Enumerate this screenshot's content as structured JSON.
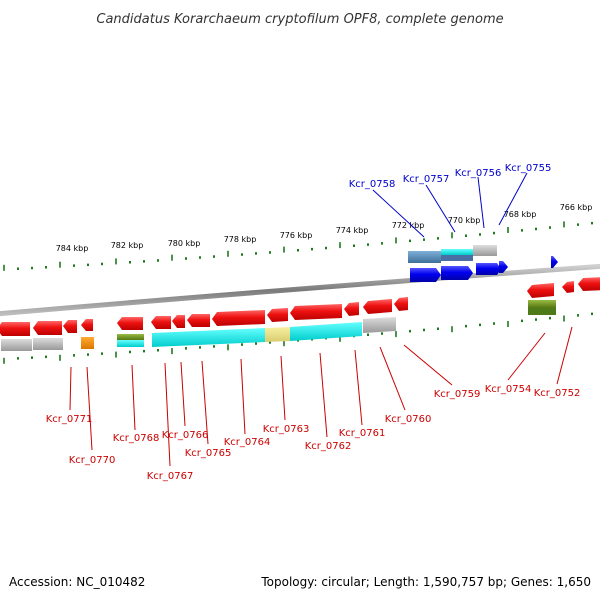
{
  "title": "Candidatus Korarchaeum cryptofilum OPF8, complete genome",
  "footer": {
    "accession": "Accession: NC_010482",
    "summary": "Topology: circular; Length: 1,590,757 bp; Genes: 1,650"
  },
  "kbp_ticks": [
    "784 kbp",
    "782 kbp",
    "780 kbp",
    "778 kbp",
    "776 kbp",
    "774 kbp",
    "772 kbp",
    "770 kbp",
    "768 kbp",
    "766 kbp"
  ],
  "genes_forward": [
    "Kcr_0758",
    "Kcr_0757",
    "Kcr_0756",
    "Kcr_0755"
  ],
  "genes_reverse": [
    "Kcr_0771",
    "Kcr_0770",
    "Kcr_0768",
    "Kcr_0767",
    "Kcr_0766",
    "Kcr_0765",
    "Kcr_0764",
    "Kcr_0763",
    "Kcr_0762",
    "Kcr_0761",
    "Kcr_0760",
    "Kcr_0759",
    "Kcr_0754",
    "Kcr_0752"
  ],
  "colors": {
    "forward_label": "#0000cc",
    "reverse_label": "#cc0000",
    "gene_red": "#ee1111",
    "gene_blue": "#0000ee",
    "tick_green": "#1f7a1f",
    "backbone": "#888888"
  }
}
